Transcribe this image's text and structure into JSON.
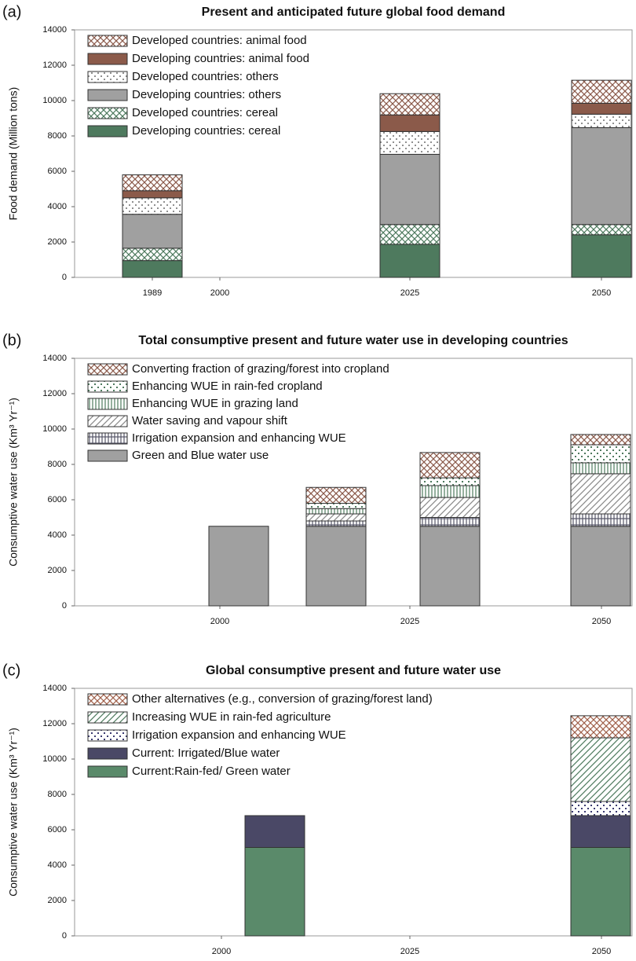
{
  "chart_data": [
    {
      "type": "stacked-bar",
      "label": "(a)",
      "title": "Present and anticipated future global food demand",
      "y_label": "Food demand (Million tons)",
      "categories": [
        "1989",
        "2000",
        "2025",
        "2050"
      ],
      "ylim": [
        0,
        14000
      ],
      "yticks": [
        0,
        2000,
        4000,
        6000,
        8000,
        10000,
        12000,
        14000
      ],
      "grid": false,
      "series": [
        {
          "name": "Developing countries: cereal",
          "color": "#4e7a5e",
          "pattern": "solid",
          "values": [
            950,
            null,
            1870,
            2410
          ]
        },
        {
          "name": "Developed countries: cereal",
          "color": "#4e7a5e",
          "pattern": "cross",
          "values": [
            700,
            null,
            1120,
            580
          ]
        },
        {
          "name": "Developing countries: others",
          "color": "#a0a0a0",
          "pattern": "solid",
          "values": [
            1920,
            null,
            3970,
            5480
          ]
        },
        {
          "name": "Developed countries: others",
          "color": "#909090",
          "pattern": "dots",
          "values": [
            930,
            null,
            1290,
            760
          ]
        },
        {
          "name": "Developing countries: animal food",
          "color": "#8b5a4a",
          "pattern": "solid",
          "values": [
            400,
            null,
            940,
            620
          ]
        },
        {
          "name": "Developed countries: animal food",
          "color": "#8b5a4a",
          "pattern": "cross",
          "values": [
            900,
            null,
            1200,
            1300
          ]
        }
      ]
    },
    {
      "type": "stacked-bar",
      "label": "(b)",
      "title": "Total consumptive present and future water use in developing countries",
      "y_label": "Consumptive water use (Km³ Yr⁻¹)",
      "categories": [
        "2000",
        null,
        "2025",
        "2050"
      ],
      "ylim": [
        0,
        14000
      ],
      "yticks": [
        0,
        2000,
        4000,
        6000,
        8000,
        10000,
        12000,
        14000
      ],
      "grid": false,
      "series": [
        {
          "name": "Green and Blue water use",
          "color": "#a0a0a0",
          "pattern": "solid",
          "values": [
            4500,
            4500,
            4500,
            4500
          ]
        },
        {
          "name": "Irrigation expansion and enhancing WUE",
          "color": "#555566",
          "pattern": "grid",
          "values": [
            null,
            300,
            500,
            700
          ]
        },
        {
          "name": "Water saving and vapour shift",
          "color": "#888888",
          "pattern": "diag",
          "values": [
            null,
            400,
            1130,
            2270
          ]
        },
        {
          "name": "Enhancing WUE in grazing land",
          "color": "#4e7a5e",
          "pattern": "vlines",
          "values": [
            null,
            300,
            670,
            620
          ]
        },
        {
          "name": "Enhancing WUE in rain-fed  cropland",
          "color": "#4e7a5e",
          "pattern": "dots",
          "values": [
            null,
            300,
            440,
            1020
          ]
        },
        {
          "name": "Converting fraction of grazing/forest into cropland",
          "color": "#8b5a4a",
          "pattern": "cross",
          "values": [
            null,
            900,
            1430,
            580
          ]
        }
      ]
    },
    {
      "type": "stacked-bar",
      "label": "(c)",
      "title": "Global consumptive present and future water use",
      "y_label": "Consumptive water use (Km³ Yr⁻¹)",
      "categories": [
        "2000",
        "2025",
        "2050"
      ],
      "ylim": [
        0,
        14000
      ],
      "yticks": [
        0,
        2000,
        4000,
        6000,
        8000,
        10000,
        12000,
        14000
      ],
      "grid": false,
      "series": [
        {
          "name": "Current:Rain-fed/ Green water",
          "color": "#5a8a6a",
          "pattern": "solid",
          "values": [
            5000,
            null,
            5000
          ]
        },
        {
          "name": "Current: Irrigated/Blue water",
          "color": "#4a4866",
          "pattern": "solid",
          "values": [
            1800,
            null,
            1800
          ]
        },
        {
          "name": "Irrigation expansion and enhancing WUE",
          "color": "#3a3a70",
          "pattern": "dots",
          "values": [
            null,
            null,
            800
          ]
        },
        {
          "name": "Increasing WUE in rain-fed agriculture",
          "color": "#4e7a5e",
          "pattern": "diag",
          "values": [
            null,
            null,
            3600
          ]
        },
        {
          "name": "Other alternatives (e.g., conversion of grazing/forest land)",
          "color": "#a0604a",
          "pattern": "cross",
          "values": [
            null,
            null,
            1250
          ]
        }
      ]
    }
  ]
}
